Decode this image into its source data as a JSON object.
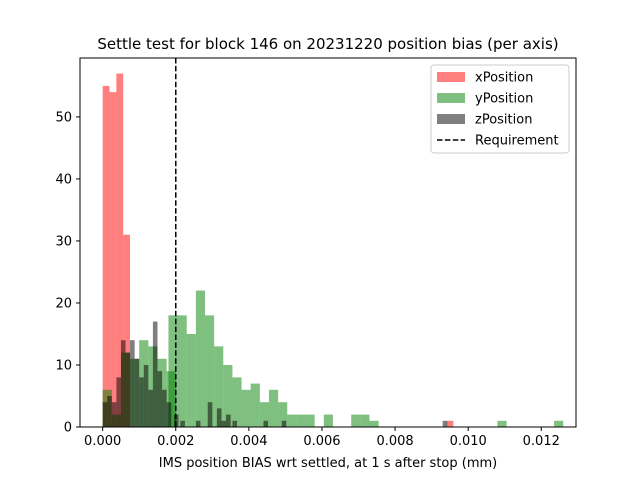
{
  "chart_data": {
    "type": "bar",
    "title": "Settle test for block 146 on 20231220 position bias (per axis)",
    "xlabel": "IMS position BIAS wrt settled, at 1 s after stop (mm)",
    "ylabel": "",
    "xlim": [
      -0.00062,
      0.01295
    ],
    "ylim": [
      0,
      59.5
    ],
    "xticks": [
      0.0,
      0.002,
      0.004,
      0.006,
      0.008,
      0.01,
      0.012
    ],
    "xtick_labels": [
      "0.000",
      "0.002",
      "0.004",
      "0.006",
      "0.008",
      "0.010",
      "0.012"
    ],
    "yticks": [
      0,
      10,
      20,
      30,
      40,
      50
    ],
    "ytick_labels": [
      "0",
      "10",
      "20",
      "30",
      "40",
      "50"
    ],
    "grid": false,
    "legend_position": "top-right",
    "series": [
      {
        "name": "xPosition",
        "color": "#ff0000",
        "opacity": 0.5,
        "bin_width": 0.0001875,
        "bins": [
          [
            0.0,
            55
          ],
          [
            0.0001875,
            54
          ],
          [
            0.000375,
            57
          ],
          [
            0.0005625,
            31
          ],
          [
            0.00941,
            1
          ]
        ]
      },
      {
        "name": "yPosition",
        "color": "#008000",
        "opacity": 0.5,
        "bin_width": 0.00025,
        "bins": [
          [
            0.0,
            6
          ],
          [
            0.00025,
            2
          ],
          [
            0.0005,
            12
          ],
          [
            0.00075,
            11
          ],
          [
            0.001,
            14
          ],
          [
            0.00125,
            13
          ],
          [
            0.0015,
            11
          ],
          [
            0.00175,
            9
          ],
          [
            0.0018,
            18
          ],
          [
            0.00205,
            18
          ],
          [
            0.0023,
            15
          ],
          [
            0.00255,
            22
          ],
          [
            0.0028,
            18
          ],
          [
            0.00305,
            13
          ],
          [
            0.0033,
            10
          ],
          [
            0.00355,
            8
          ],
          [
            0.0038,
            6
          ],
          [
            0.00405,
            7
          ],
          [
            0.0043,
            4
          ],
          [
            0.00455,
            6
          ],
          [
            0.0048,
            4
          ],
          [
            0.00505,
            2
          ],
          [
            0.0053,
            2
          ],
          [
            0.00555,
            2
          ],
          [
            0.0058,
            0
          ],
          [
            0.00605,
            2
          ],
          [
            0.0063,
            0
          ],
          [
            0.00655,
            0
          ],
          [
            0.0068,
            2
          ],
          [
            0.00705,
            2
          ],
          [
            0.0073,
            1
          ],
          [
            0.0108,
            1
          ],
          [
            0.01235,
            1
          ]
        ]
      },
      {
        "name": "zPosition",
        "color": "#000000",
        "opacity": 0.5,
        "bin_width": 0.000125,
        "bins": [
          [
            0.0,
            4
          ],
          [
            0.000125,
            5
          ],
          [
            0.00025,
            4
          ],
          [
            0.000375,
            8
          ],
          [
            0.0005,
            14
          ],
          [
            0.000625,
            12
          ],
          [
            0.00075,
            14
          ],
          [
            0.000875,
            11
          ],
          [
            0.001,
            8
          ],
          [
            0.001125,
            10
          ],
          [
            0.00125,
            6
          ],
          [
            0.001375,
            17
          ],
          [
            0.0015,
            9
          ],
          [
            0.001625,
            6
          ],
          [
            0.00175,
            4
          ],
          [
            0.00195,
            2
          ],
          [
            0.002125,
            1
          ],
          [
            0.00255,
            1
          ],
          [
            0.002875,
            4
          ],
          [
            0.003125,
            3
          ],
          [
            0.00325,
            1
          ],
          [
            0.003375,
            2
          ],
          [
            0.00355,
            1
          ],
          [
            0.0044,
            1
          ],
          [
            0.0049,
            1
          ],
          [
            0.0093,
            1
          ]
        ]
      }
    ],
    "lines": [
      {
        "name": "Requirement",
        "x": 0.002,
        "color": "#000000",
        "style": "dashed"
      }
    ]
  }
}
